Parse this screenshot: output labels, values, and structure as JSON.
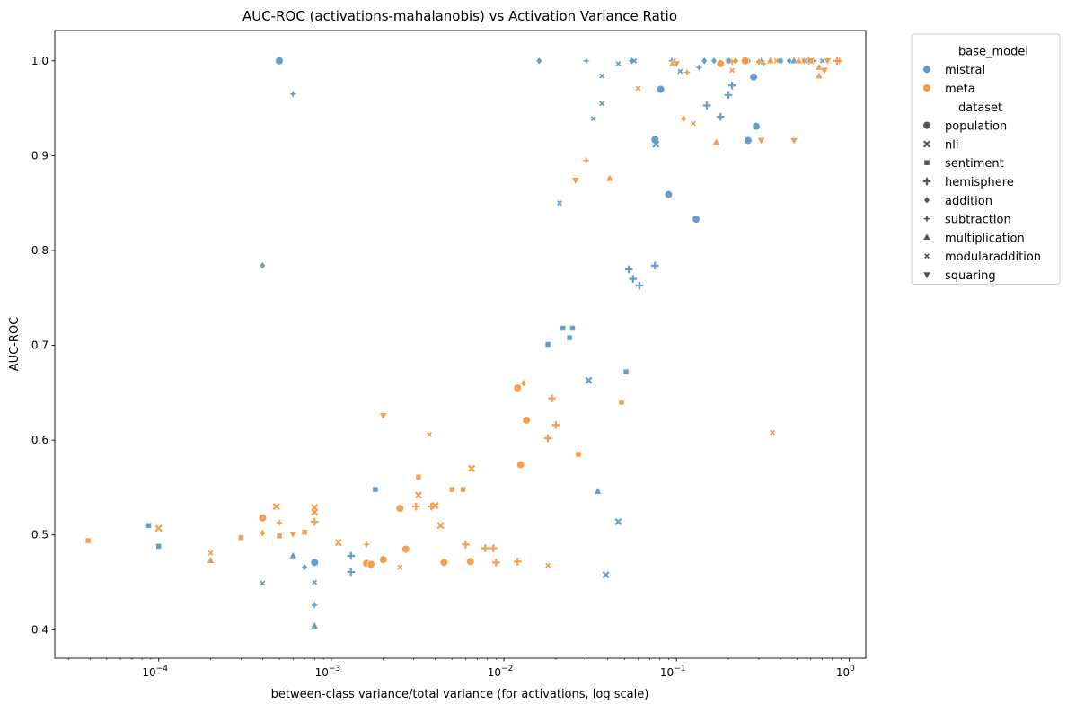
{
  "chart_data": {
    "type": "scatter",
    "title": "AUC-ROC (activations-mahalanobis) vs Activation Variance Ratio",
    "xlabel": "between-class variance/total variance (for activations, log scale)",
    "ylabel": "AUC-ROC",
    "x_scale": "log",
    "xlim": [
      2.5e-05,
      1.25
    ],
    "ylim": [
      0.37,
      1.032
    ],
    "x_ticks": [
      {
        "value": 0.0001,
        "label": "10",
        "exp": "−4"
      },
      {
        "value": 0.001,
        "label": "10",
        "exp": "−3"
      },
      {
        "value": 0.01,
        "label": "10",
        "exp": "−2"
      },
      {
        "value": 0.1,
        "label": "10",
        "exp": "−1"
      },
      {
        "value": 1,
        "label": "10",
        "exp": "0"
      }
    ],
    "y_ticks": [
      {
        "value": 0.4,
        "label": "0.4"
      },
      {
        "value": 0.5,
        "label": "0.5"
      },
      {
        "value": 0.6,
        "label": "0.6"
      },
      {
        "value": 0.7,
        "label": "0.7"
      },
      {
        "value": 0.8,
        "label": "0.8"
      },
      {
        "value": 0.9,
        "label": "0.9"
      },
      {
        "value": 1.0,
        "label": "1.0"
      }
    ],
    "grid": false,
    "legend": {
      "placement": "outside-top-right",
      "hue_title": "base_model",
      "hue": [
        {
          "name": "mistral",
          "color": "#5a9ac9"
        },
        {
          "name": "meta",
          "color": "#f49a44"
        }
      ],
      "style_title": "dataset",
      "styles": [
        {
          "name": "population",
          "marker": "circle"
        },
        {
          "name": "nli",
          "marker": "x"
        },
        {
          "name": "sentiment",
          "marker": "square"
        },
        {
          "name": "hemisphere",
          "marker": "plus"
        },
        {
          "name": "addition",
          "marker": "diamond"
        },
        {
          "name": "subtraction",
          "marker": "star"
        },
        {
          "name": "multiplication",
          "marker": "triangle-up"
        },
        {
          "name": "modularaddition",
          "marker": "x-small"
        },
        {
          "name": "squaring",
          "marker": "triangle-down"
        }
      ]
    },
    "series": [
      {
        "base_model": "mistral",
        "dataset": "population",
        "points": [
          [
            0.0005,
            1.0
          ],
          [
            0.0008,
            0.471
          ],
          [
            0.075,
            0.917
          ],
          [
            0.081,
            0.97
          ],
          [
            0.09,
            0.859
          ],
          [
            0.13,
            0.833
          ],
          [
            0.26,
            0.916
          ],
          [
            0.28,
            0.983
          ],
          [
            0.29,
            0.931
          ],
          [
            0.58,
            1.0
          ]
        ]
      },
      {
        "base_model": "mistral",
        "dataset": "nli",
        "points": [
          [
            0.031,
            0.663
          ],
          [
            0.039,
            0.458
          ],
          [
            0.046,
            0.514
          ],
          [
            0.076,
            0.912
          ]
        ]
      },
      {
        "base_model": "mistral",
        "dataset": "sentiment",
        "points": [
          [
            8.75e-05,
            0.51
          ],
          [
            0.0001,
            0.488
          ],
          [
            0.0018,
            0.548
          ],
          [
            0.018,
            0.701
          ],
          [
            0.022,
            0.718
          ],
          [
            0.024,
            0.708
          ],
          [
            0.025,
            0.718
          ],
          [
            0.051,
            0.672
          ]
        ]
      },
      {
        "base_model": "mistral",
        "dataset": "hemisphere",
        "points": [
          [
            0.0013,
            0.478
          ],
          [
            0.0013,
            0.461
          ],
          [
            0.053,
            0.78
          ],
          [
            0.056,
            0.77
          ],
          [
            0.061,
            0.763
          ],
          [
            0.075,
            0.784
          ],
          [
            0.15,
            0.953
          ],
          [
            0.18,
            0.941
          ],
          [
            0.2,
            0.964
          ],
          [
            0.21,
            0.974
          ]
        ]
      },
      {
        "base_model": "mistral",
        "dataset": "addition",
        "points": [
          [
            0.0004,
            0.784
          ],
          [
            0.0007,
            0.466
          ],
          [
            0.016,
            1.0
          ],
          [
            0.145,
            1.0
          ],
          [
            0.165,
            1.0
          ],
          [
            0.22,
            1.0
          ],
          [
            0.26,
            1.0
          ],
          [
            0.35,
            1.0
          ],
          [
            0.45,
            1.0
          ],
          [
            0.57,
            1.0
          ]
        ]
      },
      {
        "base_model": "mistral",
        "dataset": "subtraction",
        "points": [
          [
            0.0006,
            0.965
          ],
          [
            0.0008,
            0.426
          ],
          [
            0.03,
            1.0
          ],
          [
            0.055,
            1.0
          ],
          [
            0.094,
            1.0
          ],
          [
            0.135,
            0.993
          ],
          [
            0.2,
            1.0
          ],
          [
            0.31,
            1.0
          ],
          [
            0.4,
            1.0
          ],
          [
            0.62,
            1.0
          ]
        ]
      },
      {
        "base_model": "mistral",
        "dataset": "multiplication",
        "points": [
          [
            0.0006,
            0.478
          ],
          [
            0.0008,
            0.404
          ],
          [
            0.035,
            0.546
          ],
          [
            0.48,
            1.0
          ]
        ]
      },
      {
        "base_model": "mistral",
        "dataset": "modularaddition",
        "points": [
          [
            0.0004,
            0.449
          ],
          [
            0.0008,
            0.45
          ],
          [
            0.021,
            0.85
          ],
          [
            0.033,
            0.939
          ],
          [
            0.037,
            0.955
          ],
          [
            0.037,
            0.984
          ],
          [
            0.046,
            0.997
          ],
          [
            0.057,
            1.0
          ],
          [
            0.096,
            1.0
          ],
          [
            0.105,
            0.989
          ],
          [
            0.2,
            1.0
          ],
          [
            0.25,
            1.0
          ],
          [
            0.4,
            1.0
          ],
          [
            0.55,
            1.0
          ],
          [
            0.7,
            1.0
          ]
        ]
      },
      {
        "base_model": "meta",
        "dataset": "population",
        "points": [
          [
            0.0004,
            0.518
          ],
          [
            0.0016,
            0.47
          ],
          [
            0.0017,
            0.469
          ],
          [
            0.002,
            0.474
          ],
          [
            0.0025,
            0.528
          ],
          [
            0.0027,
            0.485
          ],
          [
            0.0045,
            0.471
          ],
          [
            0.0064,
            0.472
          ],
          [
            0.012,
            0.655
          ],
          [
            0.0125,
            0.574
          ],
          [
            0.0135,
            0.621
          ],
          [
            0.18,
            0.997
          ],
          [
            0.25,
            1.0
          ]
        ]
      },
      {
        "base_model": "meta",
        "dataset": "nli",
        "points": [
          [
            0.0001,
            0.507
          ],
          [
            0.00048,
            0.53
          ],
          [
            0.0008,
            0.524
          ],
          [
            0.0008,
            0.529
          ],
          [
            0.0011,
            0.492
          ],
          [
            0.0032,
            0.542
          ],
          [
            0.004,
            0.531
          ],
          [
            0.0043,
            0.51
          ],
          [
            0.0065,
            0.57
          ],
          [
            0.6,
            1.0
          ]
        ]
      },
      {
        "base_model": "meta",
        "dataset": "sentiment",
        "points": [
          [
            3.9e-05,
            0.494
          ],
          [
            0.0003,
            0.497
          ],
          [
            0.0005,
            0.499
          ],
          [
            0.0007,
            0.503
          ],
          [
            0.0032,
            0.561
          ],
          [
            0.005,
            0.548
          ],
          [
            0.0058,
            0.548
          ],
          [
            0.027,
            0.585
          ],
          [
            0.048,
            0.64
          ],
          [
            0.6,
            1.0
          ]
        ]
      },
      {
        "base_model": "meta",
        "dataset": "hemisphere",
        "points": [
          [
            0.0008,
            0.514
          ],
          [
            0.0031,
            0.53
          ],
          [
            0.0038,
            0.53
          ],
          [
            0.006,
            0.49
          ],
          [
            0.0078,
            0.486
          ],
          [
            0.0087,
            0.486
          ],
          [
            0.009,
            0.471
          ],
          [
            0.012,
            0.472
          ],
          [
            0.018,
            0.602
          ],
          [
            0.019,
            0.644
          ],
          [
            0.02,
            0.616
          ],
          [
            0.85,
            1.0
          ]
        ]
      },
      {
        "base_model": "meta",
        "dataset": "addition",
        "points": [
          [
            0.0004,
            0.502
          ],
          [
            0.013,
            0.66
          ],
          [
            0.11,
            0.939
          ],
          [
            0.22,
            1.0
          ],
          [
            0.3,
            0.999
          ],
          [
            0.55,
            1.0
          ]
        ]
      },
      {
        "base_model": "meta",
        "dataset": "subtraction",
        "points": [
          [
            0.0005,
            0.513
          ],
          [
            0.0016,
            0.49
          ],
          [
            0.03,
            0.895
          ],
          [
            0.115,
            0.988
          ],
          [
            0.21,
            0.999
          ],
          [
            0.32,
            0.997
          ],
          [
            0.88,
            1.0
          ]
        ]
      },
      {
        "base_model": "meta",
        "dataset": "multiplication",
        "points": [
          [
            0.0002,
            0.473
          ],
          [
            0.041,
            0.876
          ],
          [
            0.095,
            0.997
          ],
          [
            0.17,
            0.914
          ],
          [
            0.35,
            1.0
          ],
          [
            0.51,
            1.0
          ],
          [
            0.67,
            0.984
          ],
          [
            0.67,
            0.993
          ]
        ]
      },
      {
        "base_model": "meta",
        "dataset": "modularaddition",
        "points": [
          [
            0.0002,
            0.481
          ],
          [
            0.0025,
            0.466
          ],
          [
            0.0037,
            0.606
          ],
          [
            0.018,
            0.468
          ],
          [
            0.36,
            0.608
          ],
          [
            0.06,
            0.971
          ],
          [
            0.125,
            0.934
          ],
          [
            0.21,
            0.99
          ],
          [
            0.38,
            1.0
          ]
        ]
      },
      {
        "base_model": "meta",
        "dataset": "squaring",
        "points": [
          [
            0.0006,
            0.501
          ],
          [
            0.002,
            0.626
          ],
          [
            0.026,
            0.874
          ],
          [
            0.1,
            0.997
          ],
          [
            0.31,
            0.916
          ],
          [
            0.48,
            0.916
          ],
          [
            0.72,
            0.99
          ],
          [
            0.75,
            1.0
          ]
        ]
      }
    ]
  }
}
